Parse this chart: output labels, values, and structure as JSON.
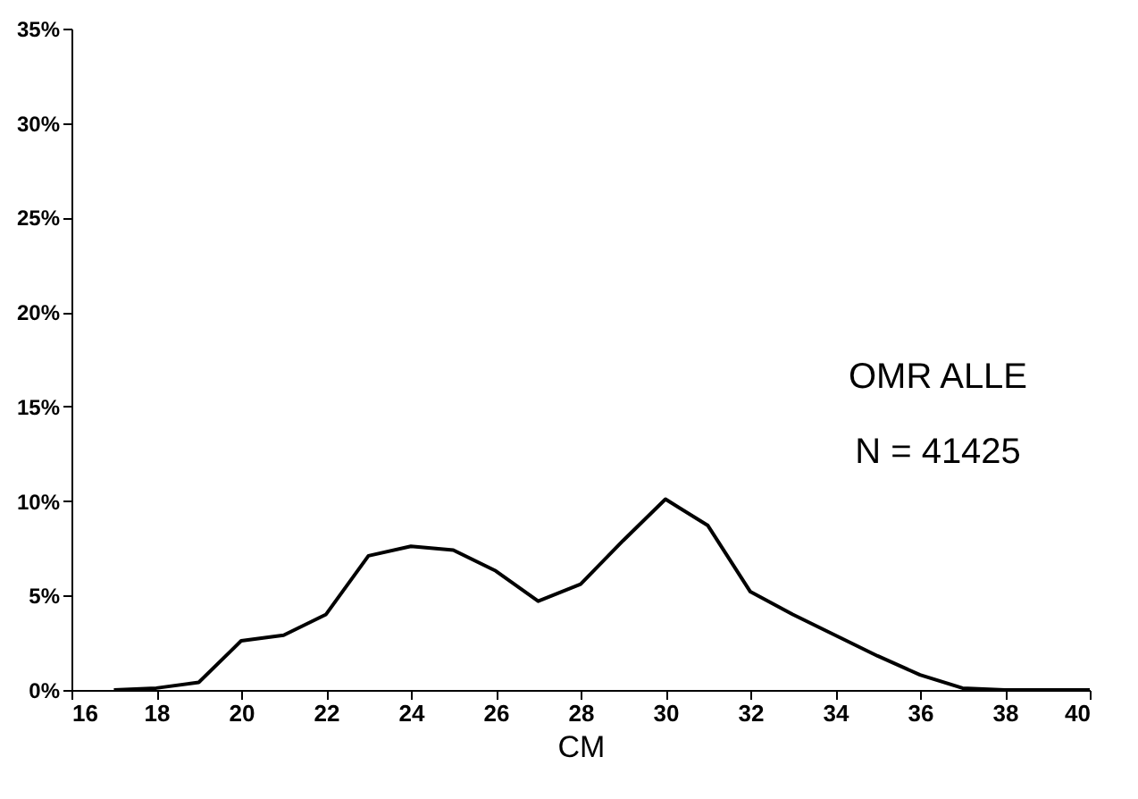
{
  "chart_data": {
    "type": "line",
    "xlabel": "CM",
    "x": [
      17,
      18,
      19,
      20,
      21,
      22,
      23,
      24,
      25,
      26,
      27,
      28,
      29,
      30,
      31,
      32,
      33,
      34,
      35,
      36,
      37,
      38,
      39,
      40
    ],
    "values": [
      0,
      0.1,
      0.4,
      2.6,
      2.9,
      4.0,
      7.1,
      7.6,
      7.4,
      6.3,
      4.7,
      5.6,
      7.9,
      10.1,
      8.7,
      5.2,
      4.0,
      2.9,
      1.8,
      0.8,
      0.1,
      0,
      0,
      0
    ],
    "color": "#000000",
    "marker": "none",
    "line_style": "solid",
    "grid": false,
    "xlim": [
      16,
      40
    ],
    "xticks": [
      16,
      18,
      20,
      22,
      24,
      26,
      28,
      30,
      32,
      34,
      36,
      38,
      40
    ],
    "ylim": [
      0,
      35
    ],
    "yticks": [
      {
        "value": 0,
        "label": "0%"
      },
      {
        "value": 5,
        "label": "5%"
      },
      {
        "value": 10,
        "label": "10%"
      },
      {
        "value": 15,
        "label": "15%"
      },
      {
        "value": 20,
        "label": "20%"
      },
      {
        "value": 25,
        "label": "25%"
      },
      {
        "value": 30,
        "label": "30%"
      },
      {
        "value": 35,
        "label": "35%"
      }
    ],
    "annotations": [
      "OMR ALLE",
      "N = 41425"
    ]
  }
}
